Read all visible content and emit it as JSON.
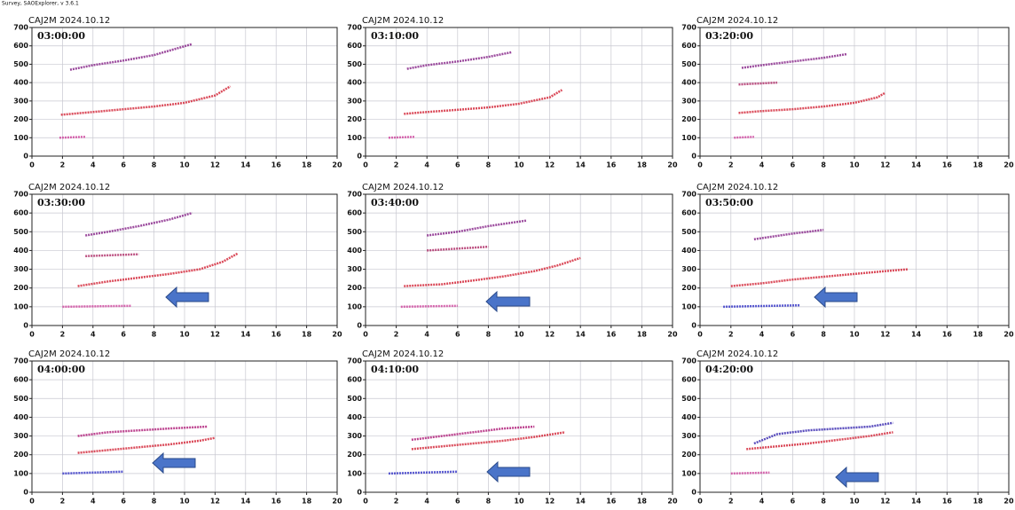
{
  "header": "Survey, SAOExplorer, v 3.6.1",
  "chart_data": [
    {
      "type": "line",
      "title": "CAJ2M 2024.10.12",
      "subtitle": "03:00:00",
      "xlim": [
        0,
        20
      ],
      "ylim": [
        0,
        700
      ],
      "xticks": [
        0,
        2,
        4,
        6,
        8,
        10,
        12,
        14,
        16,
        18,
        20
      ],
      "yticks": [
        0,
        100,
        200,
        300,
        400,
        500,
        600,
        700
      ],
      "grid": true,
      "series": [
        {
          "color": "#d42a3c",
          "x": [
            1.9,
            4,
            6,
            8,
            10,
            12,
            13
          ],
          "values": [
            225,
            240,
            255,
            270,
            290,
            330,
            380
          ]
        },
        {
          "color": "#8a2a8c",
          "x": [
            2.5,
            4,
            6,
            8,
            10.5
          ],
          "values": [
            470,
            495,
            520,
            550,
            610
          ]
        },
        {
          "color": "#d04aa0",
          "x": [
            1.8,
            3.5
          ],
          "values": [
            100,
            105
          ]
        }
      ]
    },
    {
      "type": "line",
      "title": "CAJ2M 2024.10.12",
      "subtitle": "03:10:00",
      "xlim": [
        0,
        20
      ],
      "ylim": [
        0,
        700
      ],
      "xticks": [
        0,
        2,
        4,
        6,
        8,
        10,
        12,
        14,
        16,
        18,
        20
      ],
      "yticks": [
        0,
        100,
        200,
        300,
        400,
        500,
        600,
        700
      ],
      "grid": true,
      "series": [
        {
          "color": "#d42a3c",
          "x": [
            2.5,
            4,
            6,
            8,
            10,
            12,
            12.8
          ],
          "values": [
            230,
            240,
            252,
            265,
            285,
            320,
            360
          ]
        },
        {
          "color": "#8a2a8c",
          "x": [
            2.7,
            4,
            6,
            8,
            9.5
          ],
          "values": [
            475,
            495,
            515,
            540,
            565
          ]
        },
        {
          "color": "#d04aa0",
          "x": [
            1.5,
            3.2
          ],
          "values": [
            100,
            105
          ]
        }
      ]
    },
    {
      "type": "line",
      "title": "CAJ2M 2024.10.12",
      "subtitle": "03:20:00",
      "xlim": [
        0,
        20
      ],
      "ylim": [
        0,
        700
      ],
      "xticks": [
        0,
        2,
        4,
        6,
        8,
        10,
        12,
        14,
        16,
        18,
        20
      ],
      "yticks": [
        0,
        100,
        200,
        300,
        400,
        500,
        600,
        700
      ],
      "grid": true,
      "series": [
        {
          "color": "#d42a3c",
          "x": [
            2.5,
            4,
            6,
            8,
            10,
            11.5,
            12
          ],
          "values": [
            235,
            245,
            255,
            270,
            290,
            320,
            345
          ]
        },
        {
          "color": "#8a2a8c",
          "x": [
            2.7,
            4,
            6,
            8,
            9.5
          ],
          "values": [
            480,
            495,
            515,
            535,
            555
          ]
        },
        {
          "color": "#b0306a",
          "x": [
            2.5,
            5
          ],
          "values": [
            390,
            400
          ]
        },
        {
          "color": "#d04aa0",
          "x": [
            2.2,
            3.5
          ],
          "values": [
            100,
            105
          ]
        }
      ]
    },
    {
      "type": "line",
      "title": "CAJ2M 2024.10.12",
      "subtitle": "03:30:00",
      "xlim": [
        0,
        20
      ],
      "ylim": [
        0,
        700
      ],
      "xticks": [
        0,
        2,
        4,
        6,
        8,
        10,
        12,
        14,
        16,
        18,
        20
      ],
      "yticks": [
        0,
        100,
        200,
        300,
        400,
        500,
        600,
        700
      ],
      "grid": true,
      "series": [
        {
          "color": "#d42a3c",
          "x": [
            3,
            5,
            7,
            9,
            11,
            12.5,
            13.5
          ],
          "values": [
            210,
            235,
            255,
            275,
            300,
            340,
            385
          ]
        },
        {
          "color": "#8a2a8c",
          "x": [
            3.5,
            5,
            7,
            9,
            10.5
          ],
          "values": [
            480,
            500,
            530,
            565,
            600
          ]
        },
        {
          "color": "#b0306a",
          "x": [
            3.5,
            7
          ],
          "values": [
            370,
            380
          ]
        },
        {
          "color": "#d04aa0",
          "x": [
            2,
            6.5
          ],
          "values": [
            100,
            105
          ]
        }
      ]
    },
    {
      "type": "line",
      "title": "CAJ2M 2024.10.12",
      "subtitle": "03:40:00",
      "xlim": [
        0,
        20
      ],
      "ylim": [
        0,
        700
      ],
      "xticks": [
        0,
        2,
        4,
        6,
        8,
        10,
        12,
        14,
        16,
        18,
        20
      ],
      "yticks": [
        0,
        100,
        200,
        300,
        400,
        500,
        600,
        700
      ],
      "grid": true,
      "series": [
        {
          "color": "#d42a3c",
          "x": [
            2.5,
            5,
            7,
            9,
            11,
            12.5,
            14
          ],
          "values": [
            210,
            220,
            240,
            262,
            290,
            320,
            360
          ]
        },
        {
          "color": "#8a2a8c",
          "x": [
            4,
            6,
            8,
            10.5
          ],
          "values": [
            480,
            500,
            530,
            560
          ]
        },
        {
          "color": "#b0306a",
          "x": [
            4,
            8
          ],
          "values": [
            400,
            420
          ]
        },
        {
          "color": "#d04aa0",
          "x": [
            2.3,
            6
          ],
          "values": [
            100,
            105
          ]
        }
      ]
    },
    {
      "type": "line",
      "title": "CAJ2M 2024.10.12",
      "subtitle": "03:50:00",
      "xlim": [
        0,
        20
      ],
      "ylim": [
        0,
        700
      ],
      "xticks": [
        0,
        2,
        4,
        6,
        8,
        10,
        12,
        14,
        16,
        18,
        20
      ],
      "yticks": [
        0,
        100,
        200,
        300,
        400,
        500,
        600,
        700
      ],
      "grid": true,
      "series": [
        {
          "color": "#d42a3c",
          "x": [
            2,
            4,
            6,
            8,
            10,
            12,
            13.5
          ],
          "values": [
            210,
            225,
            245,
            260,
            275,
            290,
            300
          ]
        },
        {
          "color": "#8a2a8c",
          "x": [
            3.5,
            6,
            8
          ],
          "values": [
            460,
            490,
            510
          ]
        },
        {
          "color": "#3a3ac8",
          "x": [
            1.5,
            6.5
          ],
          "values": [
            100,
            108
          ]
        }
      ]
    },
    {
      "type": "line",
      "title": "CAJ2M 2024.10.12",
      "subtitle": "04:00:00",
      "xlim": [
        0,
        20
      ],
      "ylim": [
        0,
        700
      ],
      "xticks": [
        0,
        2,
        4,
        6,
        8,
        10,
        12,
        14,
        16,
        18,
        20
      ],
      "yticks": [
        0,
        100,
        200,
        300,
        400,
        500,
        600,
        700
      ],
      "grid": true,
      "series": [
        {
          "color": "#d42a3c",
          "x": [
            3,
            5,
            7,
            9,
            11,
            12
          ],
          "values": [
            210,
            225,
            240,
            255,
            275,
            290
          ]
        },
        {
          "color": "#b0207a",
          "x": [
            3,
            5,
            7,
            9,
            11.5
          ],
          "values": [
            300,
            320,
            330,
            340,
            350
          ]
        },
        {
          "color": "#3a3ac8",
          "x": [
            2,
            6
          ],
          "values": [
            100,
            110
          ]
        }
      ]
    },
    {
      "type": "line",
      "title": "CAJ2M 2024.10.12",
      "subtitle": "04:10:00",
      "xlim": [
        0,
        20
      ],
      "ylim": [
        0,
        700
      ],
      "xticks": [
        0,
        2,
        4,
        6,
        8,
        10,
        12,
        14,
        16,
        18,
        20
      ],
      "yticks": [
        0,
        100,
        200,
        300,
        400,
        500,
        600,
        700
      ],
      "grid": true,
      "series": [
        {
          "color": "#d42a3c",
          "x": [
            3,
            5,
            7,
            9,
            11,
            13
          ],
          "values": [
            230,
            245,
            260,
            275,
            295,
            320
          ]
        },
        {
          "color": "#b0207a",
          "x": [
            3,
            5,
            7,
            9,
            11
          ],
          "values": [
            280,
            300,
            320,
            340,
            350
          ]
        },
        {
          "color": "#3a3ac8",
          "x": [
            1.5,
            6
          ],
          "values": [
            100,
            110
          ]
        }
      ]
    },
    {
      "type": "line",
      "title": "CAJ2M 2024.10.12",
      "subtitle": "04:20:00",
      "xlim": [
        0,
        20
      ],
      "ylim": [
        0,
        700
      ],
      "xticks": [
        0,
        2,
        4,
        6,
        8,
        10,
        12,
        14,
        16,
        18,
        20
      ],
      "yticks": [
        0,
        100,
        200,
        300,
        400,
        500,
        600,
        700
      ],
      "grid": true,
      "series": [
        {
          "color": "#d42a3c",
          "x": [
            3,
            5,
            7,
            9,
            11,
            12.5
          ],
          "values": [
            230,
            245,
            260,
            280,
            300,
            320
          ]
        },
        {
          "color": "#3a2ab0",
          "x": [
            3.5,
            5,
            7,
            9,
            11,
            12.5
          ],
          "values": [
            260,
            310,
            330,
            340,
            350,
            370
          ]
        },
        {
          "color": "#d04aa0",
          "x": [
            2,
            4.5
          ],
          "values": [
            100,
            105
          ]
        }
      ]
    }
  ]
}
